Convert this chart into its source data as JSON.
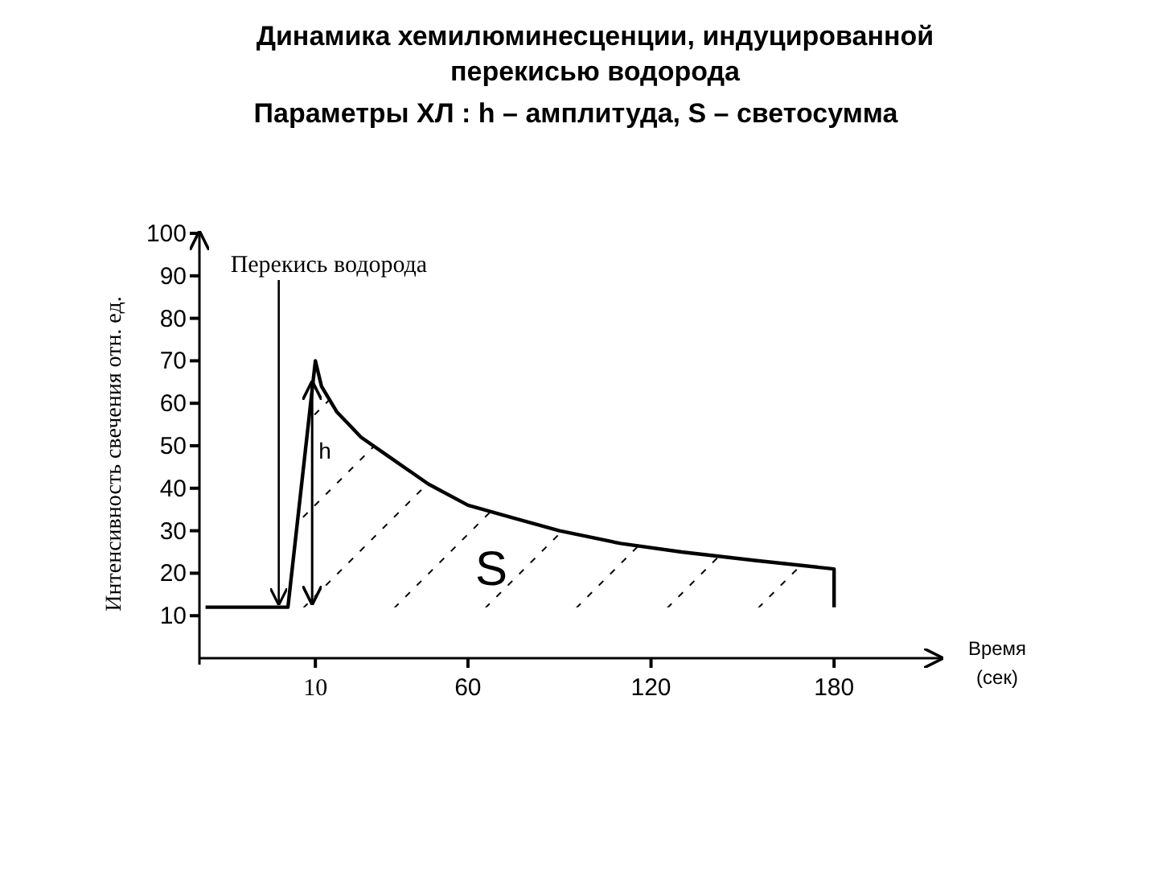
{
  "chart_data": {
    "type": "line",
    "title": "Динамика хемилюминесценции, индуцированной перекисью водорода",
    "subtitle": "Параметры ХЛ : h – амплитуда, S – светосумма",
    "xlabel": "Время (сек)",
    "ylabel": "Интенсивность свечения  отн. ед.",
    "xlim": [
      -28,
      215
    ],
    "ylim": [
      0,
      100
    ],
    "xticks": [
      10,
      60,
      120,
      180
    ],
    "yticks": [
      10,
      20,
      30,
      40,
      50,
      60,
      70,
      80,
      90,
      100
    ],
    "grid": false,
    "marker": "none",
    "line_style": "solid",
    "series": [
      {
        "color": "#000000",
        "x": [
          -26,
          1,
          10,
          12,
          17,
          25,
          35,
          47,
          60,
          75,
          90,
          110,
          130,
          154,
          180,
          180
        ],
        "values": [
          12,
          12,
          70,
          64,
          58,
          52,
          47,
          41,
          36,
          33,
          30,
          27,
          25,
          23,
          21,
          12
        ]
      }
    ],
    "annotations": [
      {
        "text": "Перекись водорода",
        "x": -2,
        "y": 13
      },
      "h",
      "S"
    ]
  }
}
